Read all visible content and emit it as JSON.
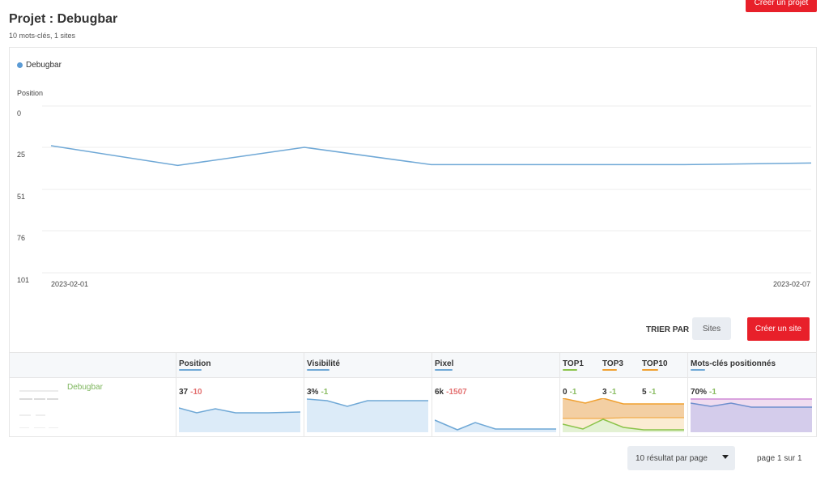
{
  "header": {
    "title": "Projet : Debugbar",
    "subtitle": "10 mots-clés, 1 sites",
    "create_project_label": "Créer un projet"
  },
  "chart_data": {
    "type": "line",
    "legend": "Debugbar",
    "ylabel": "Position",
    "yticks": [
      "0",
      "25",
      "51",
      "76",
      "101"
    ],
    "ylim": [
      0,
      101
    ],
    "y_inverted": true,
    "x_first": "2023-02-01",
    "x_last": "2023-02-07",
    "series": [
      {
        "name": "Debugbar",
        "x": [
          "2023-02-01",
          "2023-02-02",
          "2023-02-03",
          "2023-02-04",
          "2023-02-05",
          "2023-02-06",
          "2023-02-07"
        ],
        "values": [
          24,
          36,
          25,
          35.5,
          35.5,
          35.5,
          34.5
        ]
      }
    ],
    "color": "#6fa8d6"
  },
  "controls": {
    "sort_label": "TRIER PAR",
    "sort_value": "Sites",
    "create_site_label": "Créer un site"
  },
  "table": {
    "headers": {
      "position": "Position",
      "visibility": "Visibilité",
      "pixel": "Pixel",
      "top1": "TOP1",
      "top3": "TOP3",
      "top10": "TOP10",
      "keywords": "Mots-clés positionnés"
    },
    "header_colors": {
      "position": "#6fa8d6",
      "visibility": "#6fa8d6",
      "pixel": "#6fa8d6",
      "top1": "#8bc34a",
      "top3": "#f0a030",
      "top10": "#f0a030",
      "keywords": "#6fa8d6"
    },
    "row": {
      "site": "Debugbar",
      "position": "37",
      "position_delta": "-10",
      "visibility": "3%",
      "visibility_delta": "-1",
      "pixel": "6k",
      "pixel_delta": "-1507",
      "top1": "0",
      "top1_delta": "-1",
      "top3": "3",
      "top3_delta": "-1",
      "top10": "5",
      "top10_delta": "-1",
      "keywords": "70%",
      "keywords_delta": "-1"
    }
  },
  "pagination": {
    "per_page_label": "10 résultat par page",
    "page_info": "page 1 sur 1"
  }
}
